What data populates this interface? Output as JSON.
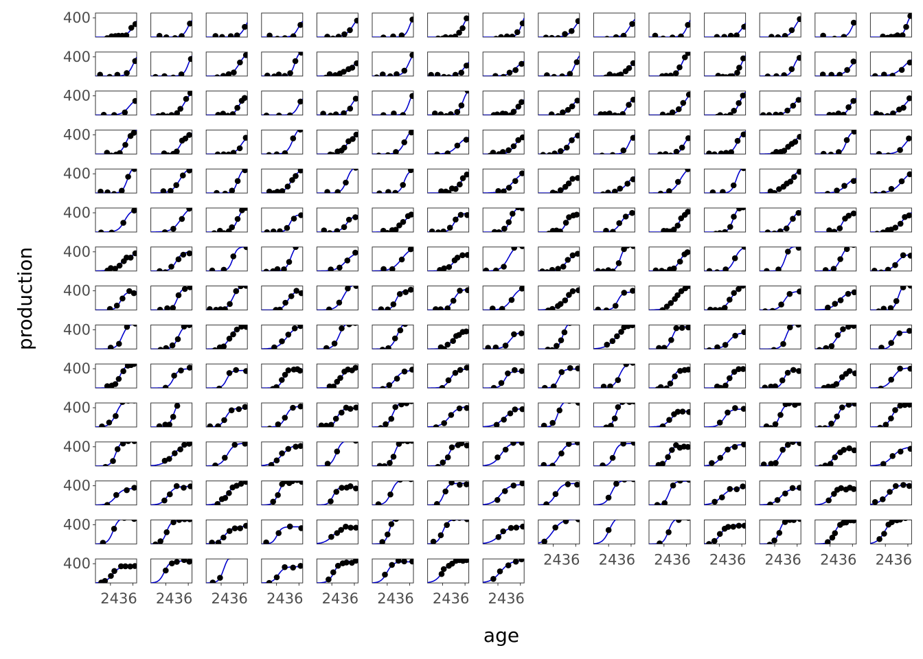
{
  "chart_data": {
    "type": "scatter",
    "facet_rows": 15,
    "facet_cols": 15,
    "panel_count": 218,
    "xlabel": "age",
    "ylabel": "production",
    "x_ticks": [
      "24",
      "36"
    ],
    "y_ticks": [
      "400"
    ],
    "xlim": [
      16,
      38
    ],
    "ylim": [
      0,
      500
    ],
    "fit": "logistic",
    "point_color": "#000000",
    "line_color": "#0000cc",
    "panels_note": "Each small panel shows one subject: black points of production vs. age with a blue logistic fitted curve."
  }
}
